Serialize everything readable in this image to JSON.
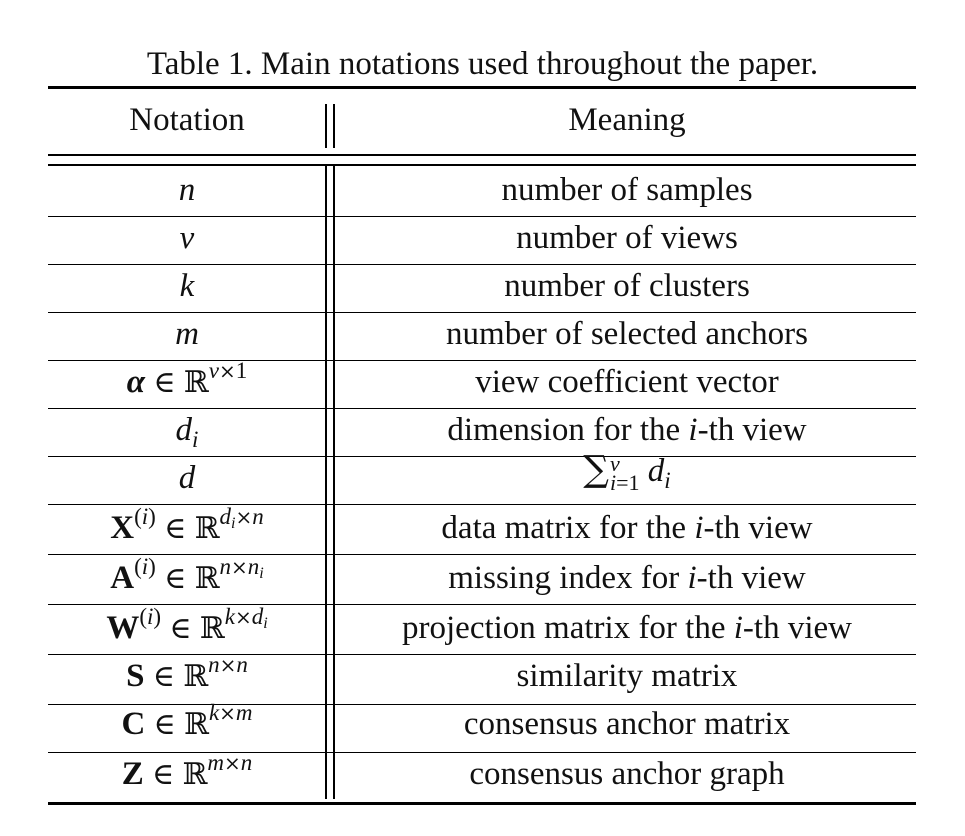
{
  "caption": "Table 1. Main notations used throughout the paper.",
  "header": {
    "notation": "Notation",
    "meaning": "Meaning"
  },
  "rows": [
    {
      "notation_text": "n",
      "meaning": "number of samples"
    },
    {
      "notation_text": "v",
      "meaning": "number of views"
    },
    {
      "notation_text": "k",
      "meaning": "number of clusters"
    },
    {
      "notation_text": "m",
      "meaning": "number of selected anchors"
    },
    {
      "notation_text": "α ∈ ℝ^{v×1}",
      "meaning": "view coefficient vector"
    },
    {
      "notation_text": "d_i",
      "meaning": "dimension for the i-th view"
    },
    {
      "notation_text": "d",
      "meaning": "∑_{i=1}^{v} d_i"
    },
    {
      "notation_text": "X^{(i)} ∈ ℝ^{d_i×n}",
      "meaning": "data matrix for the i-th view"
    },
    {
      "notation_text": "A^{(i)} ∈ ℝ^{n×n_i}",
      "meaning": "missing index for i-th view"
    },
    {
      "notation_text": "W^{(i)} ∈ ℝ^{k×d_i}",
      "meaning": "projection matrix for the i-th view"
    },
    {
      "notation_text": "S ∈ ℝ^{n×n}",
      "meaning": "similarity matrix"
    },
    {
      "notation_text": "C ∈ ℝ^{k×m}",
      "meaning": "consensus anchor matrix"
    },
    {
      "notation_text": "Z ∈ ℝ^{m×n}",
      "meaning": "consensus anchor graph"
    }
  ],
  "math": {
    "n": "n",
    "v": "v",
    "k": "k",
    "m": "m",
    "d": "d",
    "i": "i",
    "one": "1",
    "alpha": "α",
    "in": "∈",
    "reals": "ℝ",
    "times": "×",
    "X": "X",
    "A": "A",
    "W": "W",
    "S": "S",
    "C": "C",
    "Z": "Z",
    "paren_i": "(i)",
    "sum": "∑",
    "eq": "="
  },
  "meaning_parts": {
    "dim_pre": "dimension for the ",
    "dim_post": "-th view",
    "data_pre": "data matrix for the ",
    "data_post": "-th view",
    "miss_pre": "missing index for ",
    "miss_post": "-th view",
    "proj_pre": "projection matrix for the ",
    "proj_post": "-th view"
  }
}
